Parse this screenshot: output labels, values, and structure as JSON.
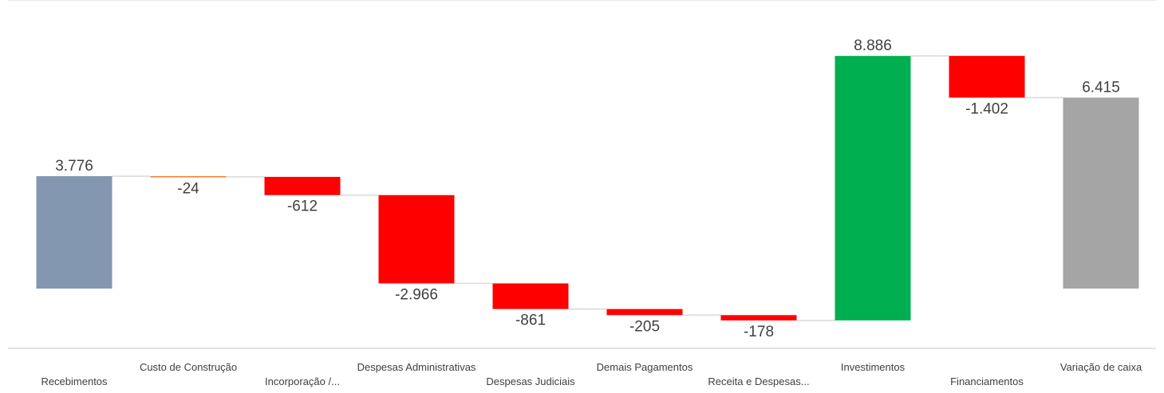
{
  "chart_data": {
    "type": "waterfall",
    "title": "",
    "categories": [
      "Recebimentos",
      "Custo de Construção",
      "Incorporação /...",
      "Despesas Administrativas",
      "Despesas Judiciais",
      "Demais Pagamentos",
      "Receita e Despesas...",
      "Investimentos",
      "Financiamentos",
      "Variação de caixa"
    ],
    "values": [
      3776,
      -24,
      -612,
      -2966,
      -861,
      -205,
      -178,
      8886,
      -1402,
      6415
    ],
    "labels": [
      "3.776",
      "-24",
      "-612",
      "-2.966",
      "-861",
      "-205",
      "-178",
      "8.886",
      "-1.402",
      "6.415"
    ],
    "bar_kinds": [
      "total",
      "delta",
      "delta",
      "delta",
      "delta",
      "delta",
      "delta",
      "delta",
      "delta",
      "total"
    ],
    "colors": {
      "total_start": "#8497b0",
      "total_end": "#a5a5a5",
      "increase": "#00b050",
      "decrease": "#ff0000",
      "small_decrease": "#ed7d31",
      "connector": "#d9d9d9",
      "axis": "#d9d9d9"
    },
    "legend": "none",
    "grid": false
  }
}
